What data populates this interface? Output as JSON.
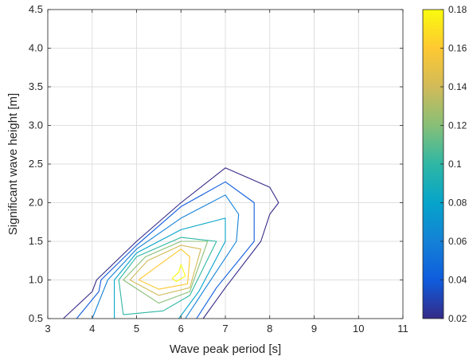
{
  "chart_data": {
    "type": "contour",
    "xlabel": "Wave peak period [s]",
    "ylabel": "Significant wave height [m]",
    "xlim": [
      3,
      11
    ],
    "ylim": [
      0.5,
      4.5
    ],
    "x_ticks": [
      "3",
      "4",
      "5",
      "6",
      "7",
      "8",
      "9",
      "10",
      "11"
    ],
    "y_ticks": [
      "0.5",
      "1.0",
      "1.5",
      "2.0",
      "2.5",
      "3.0",
      "3.5",
      "4.0",
      "4.5"
    ],
    "grid": true,
    "colorbar": {
      "range": [
        0.02,
        0.18
      ],
      "ticks": [
        "0.02",
        "0.04",
        "0.06",
        "0.08",
        "0.1",
        "0.12",
        "0.14",
        "0.16",
        "0.18"
      ],
      "colormap": "parula",
      "stops": [
        "#352a87",
        "#0f5cdd",
        "#1481d6",
        "#06a4ca",
        "#2eb7a4",
        "#87bf77",
        "#d1bb59",
        "#fec832",
        "#f9fb0e"
      ]
    },
    "contours": [
      {
        "level": 0.02,
        "points": [
          [
            3.35,
            0.5
          ],
          [
            4.0,
            0.85
          ],
          [
            4.1,
            1.0
          ],
          [
            5.0,
            1.5
          ],
          [
            6.0,
            2.0
          ],
          [
            7.0,
            2.45
          ],
          [
            8.0,
            2.2
          ],
          [
            8.2,
            2.0
          ],
          [
            8.0,
            1.85
          ],
          [
            7.8,
            1.5
          ],
          [
            7.0,
            0.9
          ],
          [
            6.5,
            0.5
          ]
        ]
      },
      {
        "level": 0.04,
        "points": [
          [
            3.65,
            0.5
          ],
          [
            4.15,
            0.85
          ],
          [
            4.2,
            1.0
          ],
          [
            5.0,
            1.45
          ],
          [
            6.0,
            1.95
          ],
          [
            7.0,
            2.27
          ],
          [
            7.65,
            2.0
          ],
          [
            7.65,
            1.5
          ],
          [
            6.8,
            0.9
          ],
          [
            6.35,
            0.5
          ]
        ]
      },
      {
        "level": 0.06,
        "points": [
          [
            4.0,
            0.5
          ],
          [
            4.35,
            1.0
          ],
          [
            5.0,
            1.4
          ],
          [
            6.0,
            1.8
          ],
          [
            7.0,
            2.1
          ],
          [
            7.3,
            1.85
          ],
          [
            7.25,
            1.5
          ],
          [
            6.5,
            0.85
          ],
          [
            6.1,
            0.5
          ]
        ]
      },
      {
        "level": 0.08,
        "points": [
          [
            4.5,
            0.5
          ],
          [
            4.5,
            1.0
          ],
          [
            5.0,
            1.35
          ],
          [
            6.0,
            1.65
          ],
          [
            7.0,
            1.8
          ],
          [
            7.0,
            1.5
          ],
          [
            6.4,
            0.85
          ],
          [
            5.95,
            0.5
          ]
        ]
      },
      {
        "level": 0.1,
        "points": [
          [
            4.7,
            0.55
          ],
          [
            4.6,
            1.0
          ],
          [
            5.0,
            1.3
          ],
          [
            6.0,
            1.55
          ],
          [
            6.8,
            1.5
          ],
          [
            6.2,
            0.8
          ],
          [
            5.6,
            0.6
          ],
          [
            4.7,
            0.55
          ]
        ]
      },
      {
        "level": 0.12,
        "points": [
          [
            4.7,
            1.0
          ],
          [
            5.2,
            1.3
          ],
          [
            6.0,
            1.5
          ],
          [
            6.6,
            1.5
          ],
          [
            6.2,
            0.85
          ],
          [
            5.5,
            0.7
          ],
          [
            4.7,
            1.0
          ]
        ]
      },
      {
        "level": 0.14,
        "points": [
          [
            4.85,
            1.0
          ],
          [
            5.25,
            1.25
          ],
          [
            6.0,
            1.45
          ],
          [
            6.45,
            1.4
          ],
          [
            6.2,
            0.9
          ],
          [
            5.5,
            0.8
          ],
          [
            4.85,
            1.0
          ]
        ]
      },
      {
        "level": 0.16,
        "points": [
          [
            5.05,
            1.0
          ],
          [
            5.4,
            1.15
          ],
          [
            6.0,
            1.4
          ],
          [
            6.2,
            1.3
          ],
          [
            6.15,
            0.95
          ],
          [
            5.5,
            0.88
          ],
          [
            5.05,
            1.0
          ]
        ]
      },
      {
        "level": 0.18,
        "points": [
          [
            5.8,
            1.02
          ],
          [
            5.95,
            1.1
          ],
          [
            6.0,
            1.2
          ],
          [
            6.1,
            1.05
          ],
          [
            5.9,
            0.98
          ],
          [
            5.8,
            1.02
          ]
        ]
      }
    ]
  }
}
